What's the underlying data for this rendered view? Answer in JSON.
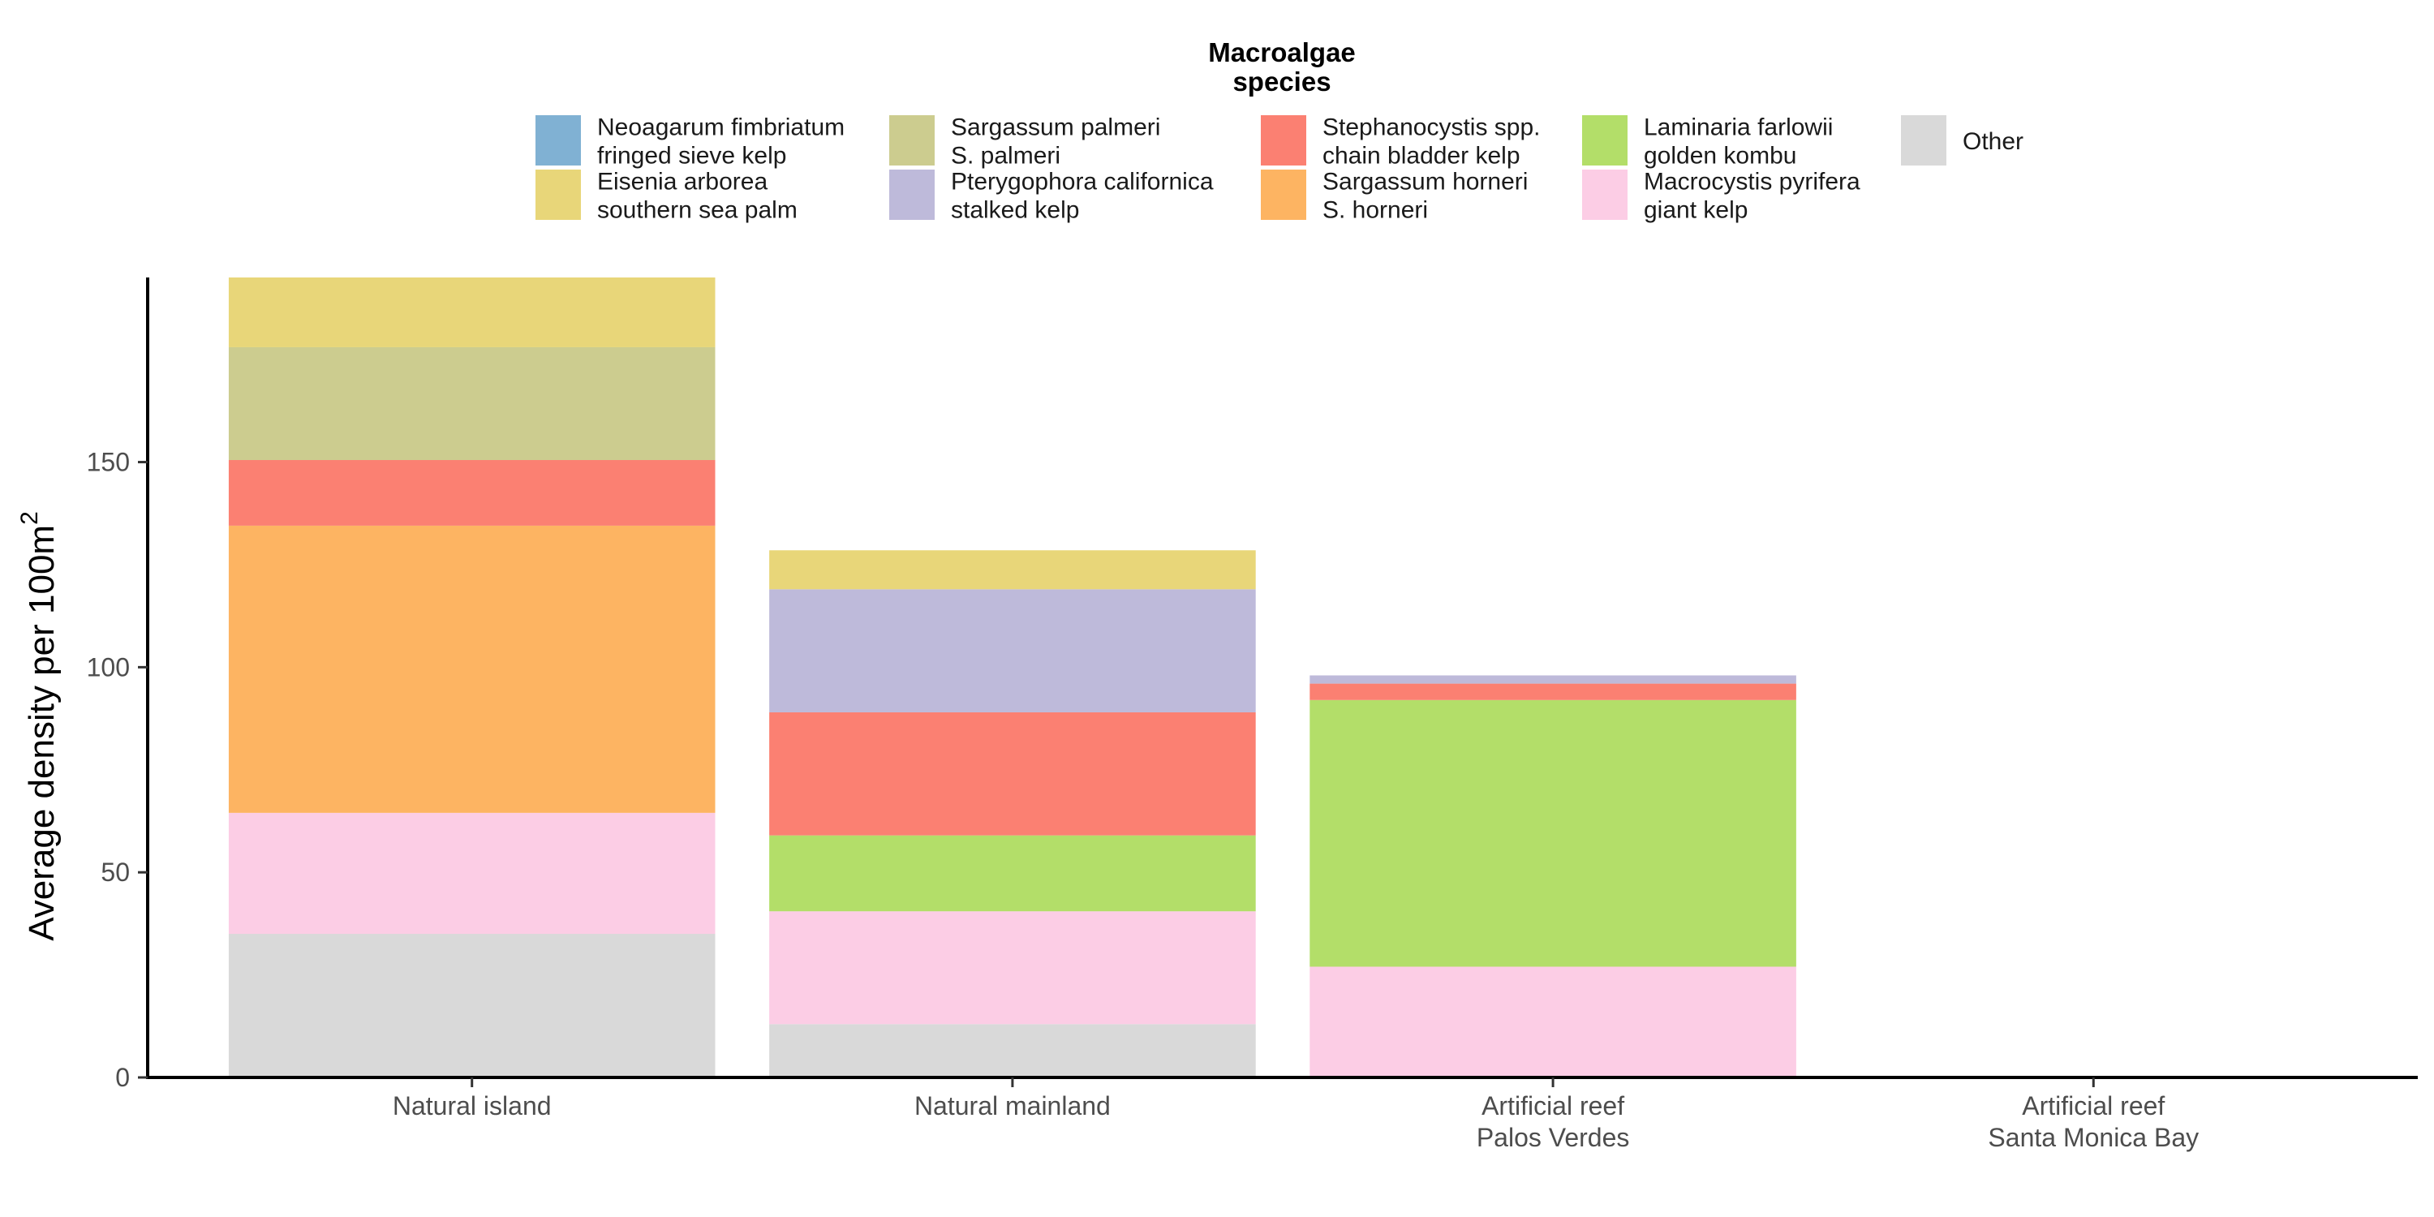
{
  "chart_data": {
    "type": "bar",
    "stacked": true,
    "legend_title": [
      "Macroalgae",
      "species"
    ],
    "legend_position": "top",
    "ylabel": "Average density per 100m",
    "ylabel_superscript": "2",
    "xlabel": "",
    "ylim": [
      0,
      195
    ],
    "yticks": [
      0,
      50,
      100,
      150
    ],
    "grid": false,
    "categories": [
      [
        "Natural island"
      ],
      [
        "Natural mainland"
      ],
      [
        "Artificial reef",
        "Palos Verdes"
      ],
      [
        "Artificial reef",
        "Santa Monica Bay"
      ]
    ],
    "series": [
      {
        "key": "other",
        "name": [
          "Other"
        ],
        "color": "#d9d9d9",
        "values": [
          35,
          13,
          0,
          0
        ]
      },
      {
        "key": "macrocystis",
        "name": [
          "Macrocystis pyrifera",
          "giant kelp"
        ],
        "color": "#fccde5",
        "values": [
          29.5,
          27.5,
          27,
          0
        ]
      },
      {
        "key": "laminaria",
        "name": [
          "Laminaria farlowii",
          "golden kombu"
        ],
        "color": "#b3de69",
        "values": [
          0,
          18.5,
          65,
          0
        ]
      },
      {
        "key": "sargassum_horneri",
        "name": [
          "Sargassum horneri",
          "S. horneri"
        ],
        "color": "#fdb462",
        "values": [
          70,
          0,
          0,
          0
        ]
      },
      {
        "key": "stephanocystis",
        "name": [
          "Stephanocystis spp.",
          "chain bladder kelp"
        ],
        "color": "#fb8072",
        "values": [
          16,
          30,
          4,
          0
        ]
      },
      {
        "key": "pterygophora",
        "name": [
          "Pterygophora californica",
          "stalked kelp"
        ],
        "color": "#bebada",
        "values": [
          0,
          30,
          2,
          0
        ]
      },
      {
        "key": "sargassum_palmeri",
        "name": [
          "Sargassum palmeri",
          "S. palmeri"
        ],
        "color": "#cccc8f",
        "values": [
          27.5,
          0,
          0,
          0
        ]
      },
      {
        "key": "eisenia",
        "name": [
          "Eisenia arborea",
          "southern sea palm"
        ],
        "color": "#e8d679",
        "values": [
          17,
          9.5,
          0,
          0
        ]
      },
      {
        "key": "neoagarum",
        "name": [
          "Neoagarum fimbriatum",
          "fringed sieve kelp"
        ],
        "color": "#80b1d3",
        "values": [
          0,
          0,
          0,
          0
        ]
      }
    ],
    "legend_order": [
      "neoagarum",
      "eisenia",
      "sargassum_palmeri",
      "pterygophora",
      "stephanocystis",
      "sargassum_horneri",
      "laminaria",
      "macrocystis",
      "other"
    ]
  }
}
